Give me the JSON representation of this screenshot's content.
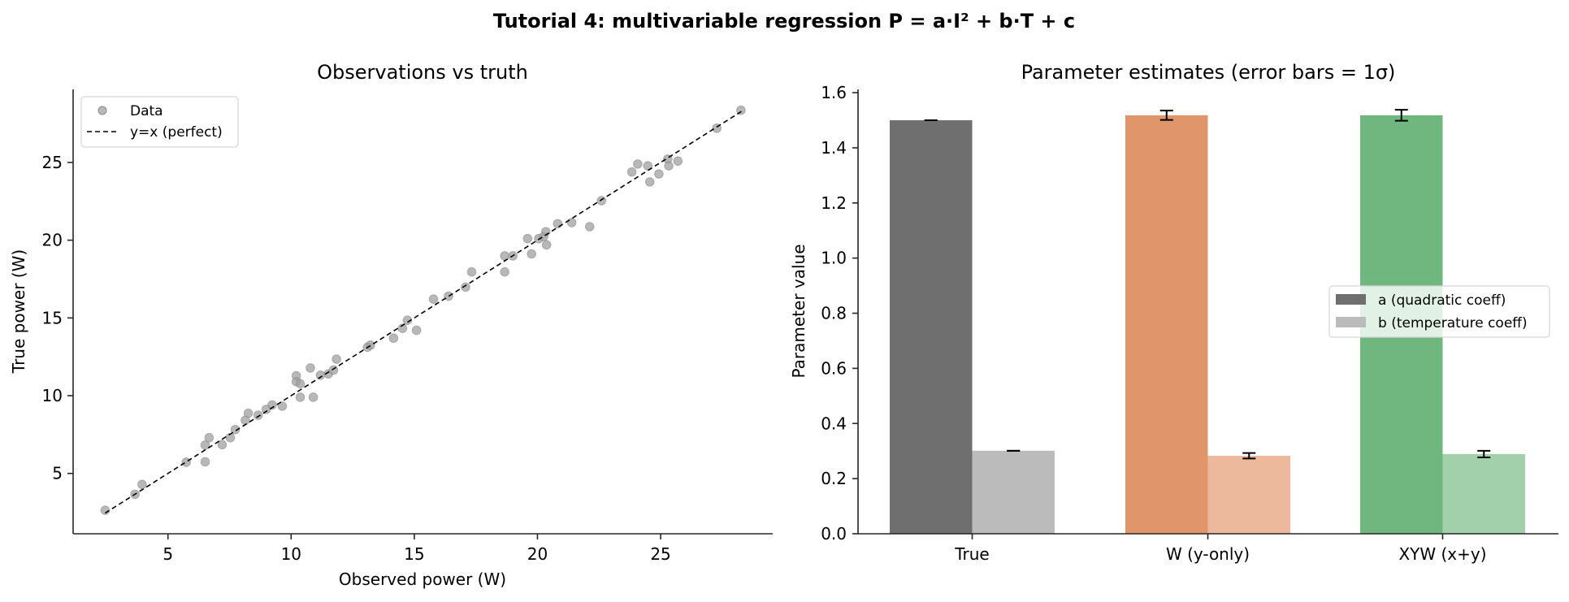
{
  "figure": {
    "suptitle": "Tutorial 4: multivariable regression  P = a·I² + b·T + c"
  },
  "chart_data": [
    {
      "type": "scatter",
      "title": "Observations vs truth",
      "xlabel": "Observed power (W)",
      "ylabel": "True power (W)",
      "xlim": [
        1.15,
        29.55
      ],
      "ylim": [
        1.12,
        29.7
      ],
      "xticks": [
        5,
        10,
        15,
        20,
        25
      ],
      "yticks": [
        5,
        10,
        15,
        20,
        25
      ],
      "grid": false,
      "legend": {
        "position": "upper left",
        "entries": [
          {
            "label": "Data",
            "marker": "circle",
            "color": "#a0a0a0"
          },
          {
            "label": "y=x (perfect)",
            "line": "dashed",
            "color": "#000000"
          }
        ]
      },
      "series": [
        {
          "name": "Data",
          "color": "#a0a0a0",
          "points": [
            [
              2.45,
              2.63
            ],
            [
              3.66,
              3.66
            ],
            [
              3.95,
              4.29
            ],
            [
              5.74,
              5.72
            ],
            [
              6.51,
              6.82
            ],
            [
              6.67,
              7.3
            ],
            [
              6.51,
              5.75
            ],
            [
              7.2,
              6.85
            ],
            [
              7.53,
              7.3
            ],
            [
              7.73,
              7.82
            ],
            [
              8.14,
              8.42
            ],
            [
              8.26,
              8.87
            ],
            [
              8.66,
              8.74
            ],
            [
              8.99,
              9.12
            ],
            [
              9.23,
              9.4
            ],
            [
              9.64,
              9.33
            ],
            [
              10.21,
              11.28
            ],
            [
              10.21,
              10.9
            ],
            [
              10.37,
              10.77
            ],
            [
              10.37,
              9.9
            ],
            [
              10.78,
              11.78
            ],
            [
              10.9,
              9.9
            ],
            [
              11.19,
              11.32
            ],
            [
              11.51,
              11.4
            ],
            [
              11.72,
              11.65
            ],
            [
              11.84,
              12.35
            ],
            [
              13.1,
              13.12
            ],
            [
              13.22,
              13.25
            ],
            [
              14.16,
              13.7
            ],
            [
              14.52,
              14.33
            ],
            [
              14.72,
              14.85
            ],
            [
              15.09,
              14.21
            ],
            [
              15.78,
              16.21
            ],
            [
              16.39,
              16.4
            ],
            [
              17.08,
              16.98
            ],
            [
              17.33,
              17.96
            ],
            [
              18.67,
              18.99
            ],
            [
              18.67,
              17.96
            ],
            [
              19.0,
              18.99
            ],
            [
              19.6,
              20.1
            ],
            [
              19.76,
              19.12
            ],
            [
              20.05,
              20.1
            ],
            [
              20.25,
              20.23
            ],
            [
              20.34,
              20.55
            ],
            [
              20.37,
              19.7
            ],
            [
              20.82,
              21.06
            ],
            [
              21.39,
              21.13
            ],
            [
              22.12,
              20.87
            ],
            [
              22.6,
              22.54
            ],
            [
              23.83,
              24.39
            ],
            [
              24.07,
              24.9
            ],
            [
              24.48,
              24.78
            ],
            [
              24.56,
              23.75
            ],
            [
              24.93,
              24.26
            ],
            [
              25.29,
              25.22
            ],
            [
              25.33,
              24.78
            ],
            [
              25.7,
              25.09
            ],
            [
              27.28,
              27.2
            ],
            [
              28.26,
              28.36
            ]
          ]
        },
        {
          "name": "y=x (perfect)",
          "type": "line",
          "style": "dashed",
          "color": "#000000",
          "points": [
            [
              2.45,
              2.45
            ],
            [
              28.36,
              28.36
            ]
          ]
        }
      ]
    },
    {
      "type": "bar",
      "title": "Parameter estimates (error bars = 1σ)",
      "xlabel": "",
      "ylabel": "Parameter value",
      "ylim": [
        0,
        1.612
      ],
      "yticks": [
        0.0,
        0.2,
        0.4,
        0.6,
        0.8,
        1.0,
        1.2,
        1.4,
        1.6
      ],
      "grid": false,
      "categories": [
        "True",
        "W (y-only)",
        "XYW (x+y)"
      ],
      "legend": {
        "position": "center right",
        "entries": [
          {
            "label": "a (quadratic coeff)",
            "color": "#6f6f6f"
          },
          {
            "label": "b (temperature coeff)",
            "color": "#bbbbbb"
          }
        ]
      },
      "series": [
        {
          "name": "a (quadratic coeff)",
          "values": [
            1.5,
            1.518,
            1.518
          ],
          "errors": [
            0.0,
            0.017,
            0.02
          ],
          "colors": [
            "#6f6f6f",
            "#e0956b",
            "#6fb77f"
          ]
        },
        {
          "name": "b (temperature coeff)",
          "values": [
            0.301,
            0.283,
            0.289
          ],
          "errors": [
            0.0,
            0.01,
            0.012
          ],
          "colors": [
            "#bbbbbb",
            "#ecb99d",
            "#a2d0aa"
          ]
        }
      ]
    }
  ]
}
